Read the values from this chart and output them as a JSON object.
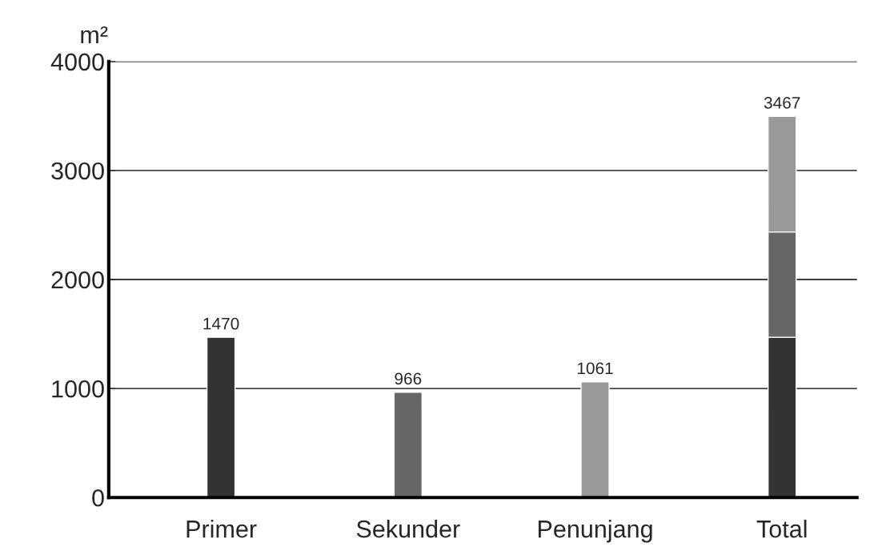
{
  "chart_data": {
    "type": "bar",
    "ylabel": "m²",
    "categories": [
      "Primer",
      "Sekunder",
      "Penunjang",
      "Total"
    ],
    "stacked": true,
    "series": [
      {
        "color": "#333333",
        "values": [
          1470,
          null,
          null,
          1470
        ],
        "value_labels": [
          "1470",
          null,
          null,
          null
        ]
      },
      {
        "color": "#666666",
        "values": [
          null,
          966,
          null,
          966
        ],
        "value_labels": [
          null,
          "966",
          null,
          null
        ]
      },
      {
        "color": "#999999",
        "values": [
          null,
          null,
          1061,
          1061
        ],
        "value_labels": [
          null,
          null,
          "1061",
          null
        ]
      }
    ],
    "annotations": [
      {
        "text": "3467",
        "x": "Total",
        "y": 3467
      }
    ],
    "ylim": [
      0,
      4000
    ],
    "yticks": [
      0,
      1000,
      2000,
      3000,
      4000
    ],
    "grid": "y",
    "legend": false
  }
}
